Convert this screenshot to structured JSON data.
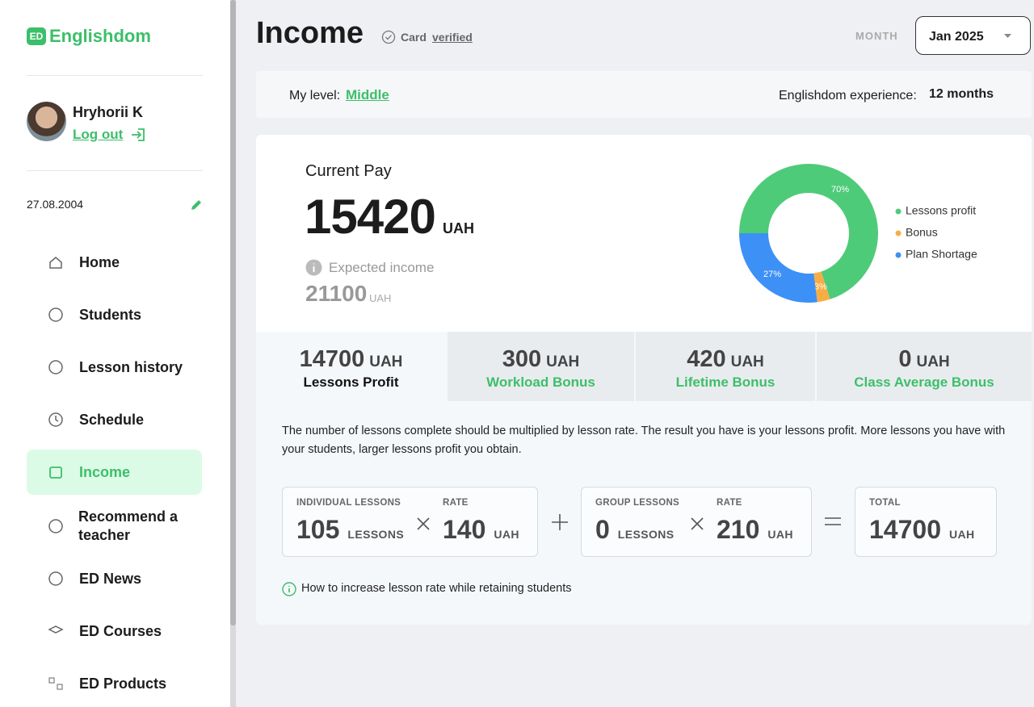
{
  "sidebar": {
    "logo_badge": "ED",
    "logo_text": "Englishdom",
    "user": {
      "name": "Hryhorii K",
      "logout": "Log out"
    },
    "date": "27.08.2004",
    "nav": [
      {
        "label": "Home"
      },
      {
        "label": "Students"
      },
      {
        "label": "Lesson history"
      },
      {
        "label": "Schedule"
      },
      {
        "label": "Income"
      },
      {
        "label": "Recommend a teacher"
      },
      {
        "label": "ED News"
      },
      {
        "label": "ED Courses"
      },
      {
        "label": "ED Products"
      }
    ]
  },
  "header": {
    "title": "Income",
    "card_label": "Card",
    "card_status": "verified",
    "month_label": "MONTH",
    "month_value": "Jan 2025"
  },
  "level_bar": {
    "level_label": "My level:",
    "level_value": "Middle",
    "experience_label": "Englishdom experience:",
    "experience_value": "12 months"
  },
  "pay": {
    "current_label": "Current Pay",
    "current_value": 15420,
    "current_currency": "UAH",
    "expected_label": "Expected income",
    "expected_value": 21100,
    "expected_currency": "UAH"
  },
  "chart_data": {
    "type": "pie",
    "donut": true,
    "categories": [
      "Lessons profit",
      "Bonus",
      "Plan Shortage"
    ],
    "values": [
      70,
      3,
      27
    ],
    "value_labels": [
      "70%",
      "3%",
      "27%"
    ],
    "colors": [
      "#4ecb79",
      "#f7ad45",
      "#3d90f5"
    ]
  },
  "tabs": [
    {
      "amount": 14700,
      "currency": "UAH",
      "label": "Lessons Profit"
    },
    {
      "amount": 300,
      "currency": "UAH",
      "label": "Workload Bonus"
    },
    {
      "amount": 420,
      "currency": "UAH",
      "label": "Lifetime Bonus"
    },
    {
      "amount": 0,
      "currency": "UAH",
      "label": "Class Average Bonus"
    }
  ],
  "description": "The number of lessons complete should be multiplied by lesson rate. The result you have is your lessons profit. More lessons you have with your students, larger lessons profit you obtain.",
  "formula": {
    "individual": {
      "label": "INDIVIDUAL LESSONS",
      "value": 105,
      "unit": "LESSONS"
    },
    "individual_rate": {
      "label": "RATE",
      "value": 140,
      "unit": "UAH"
    },
    "group": {
      "label": "GROUP LESSONS",
      "value": 0,
      "unit": "LESSONS"
    },
    "group_rate": {
      "label": "RATE",
      "value": 210,
      "unit": "UAH"
    },
    "total": {
      "label": "TOTAL",
      "value": 14700,
      "unit": "UAH"
    }
  },
  "tip": "How to increase lesson rate while retaining students"
}
